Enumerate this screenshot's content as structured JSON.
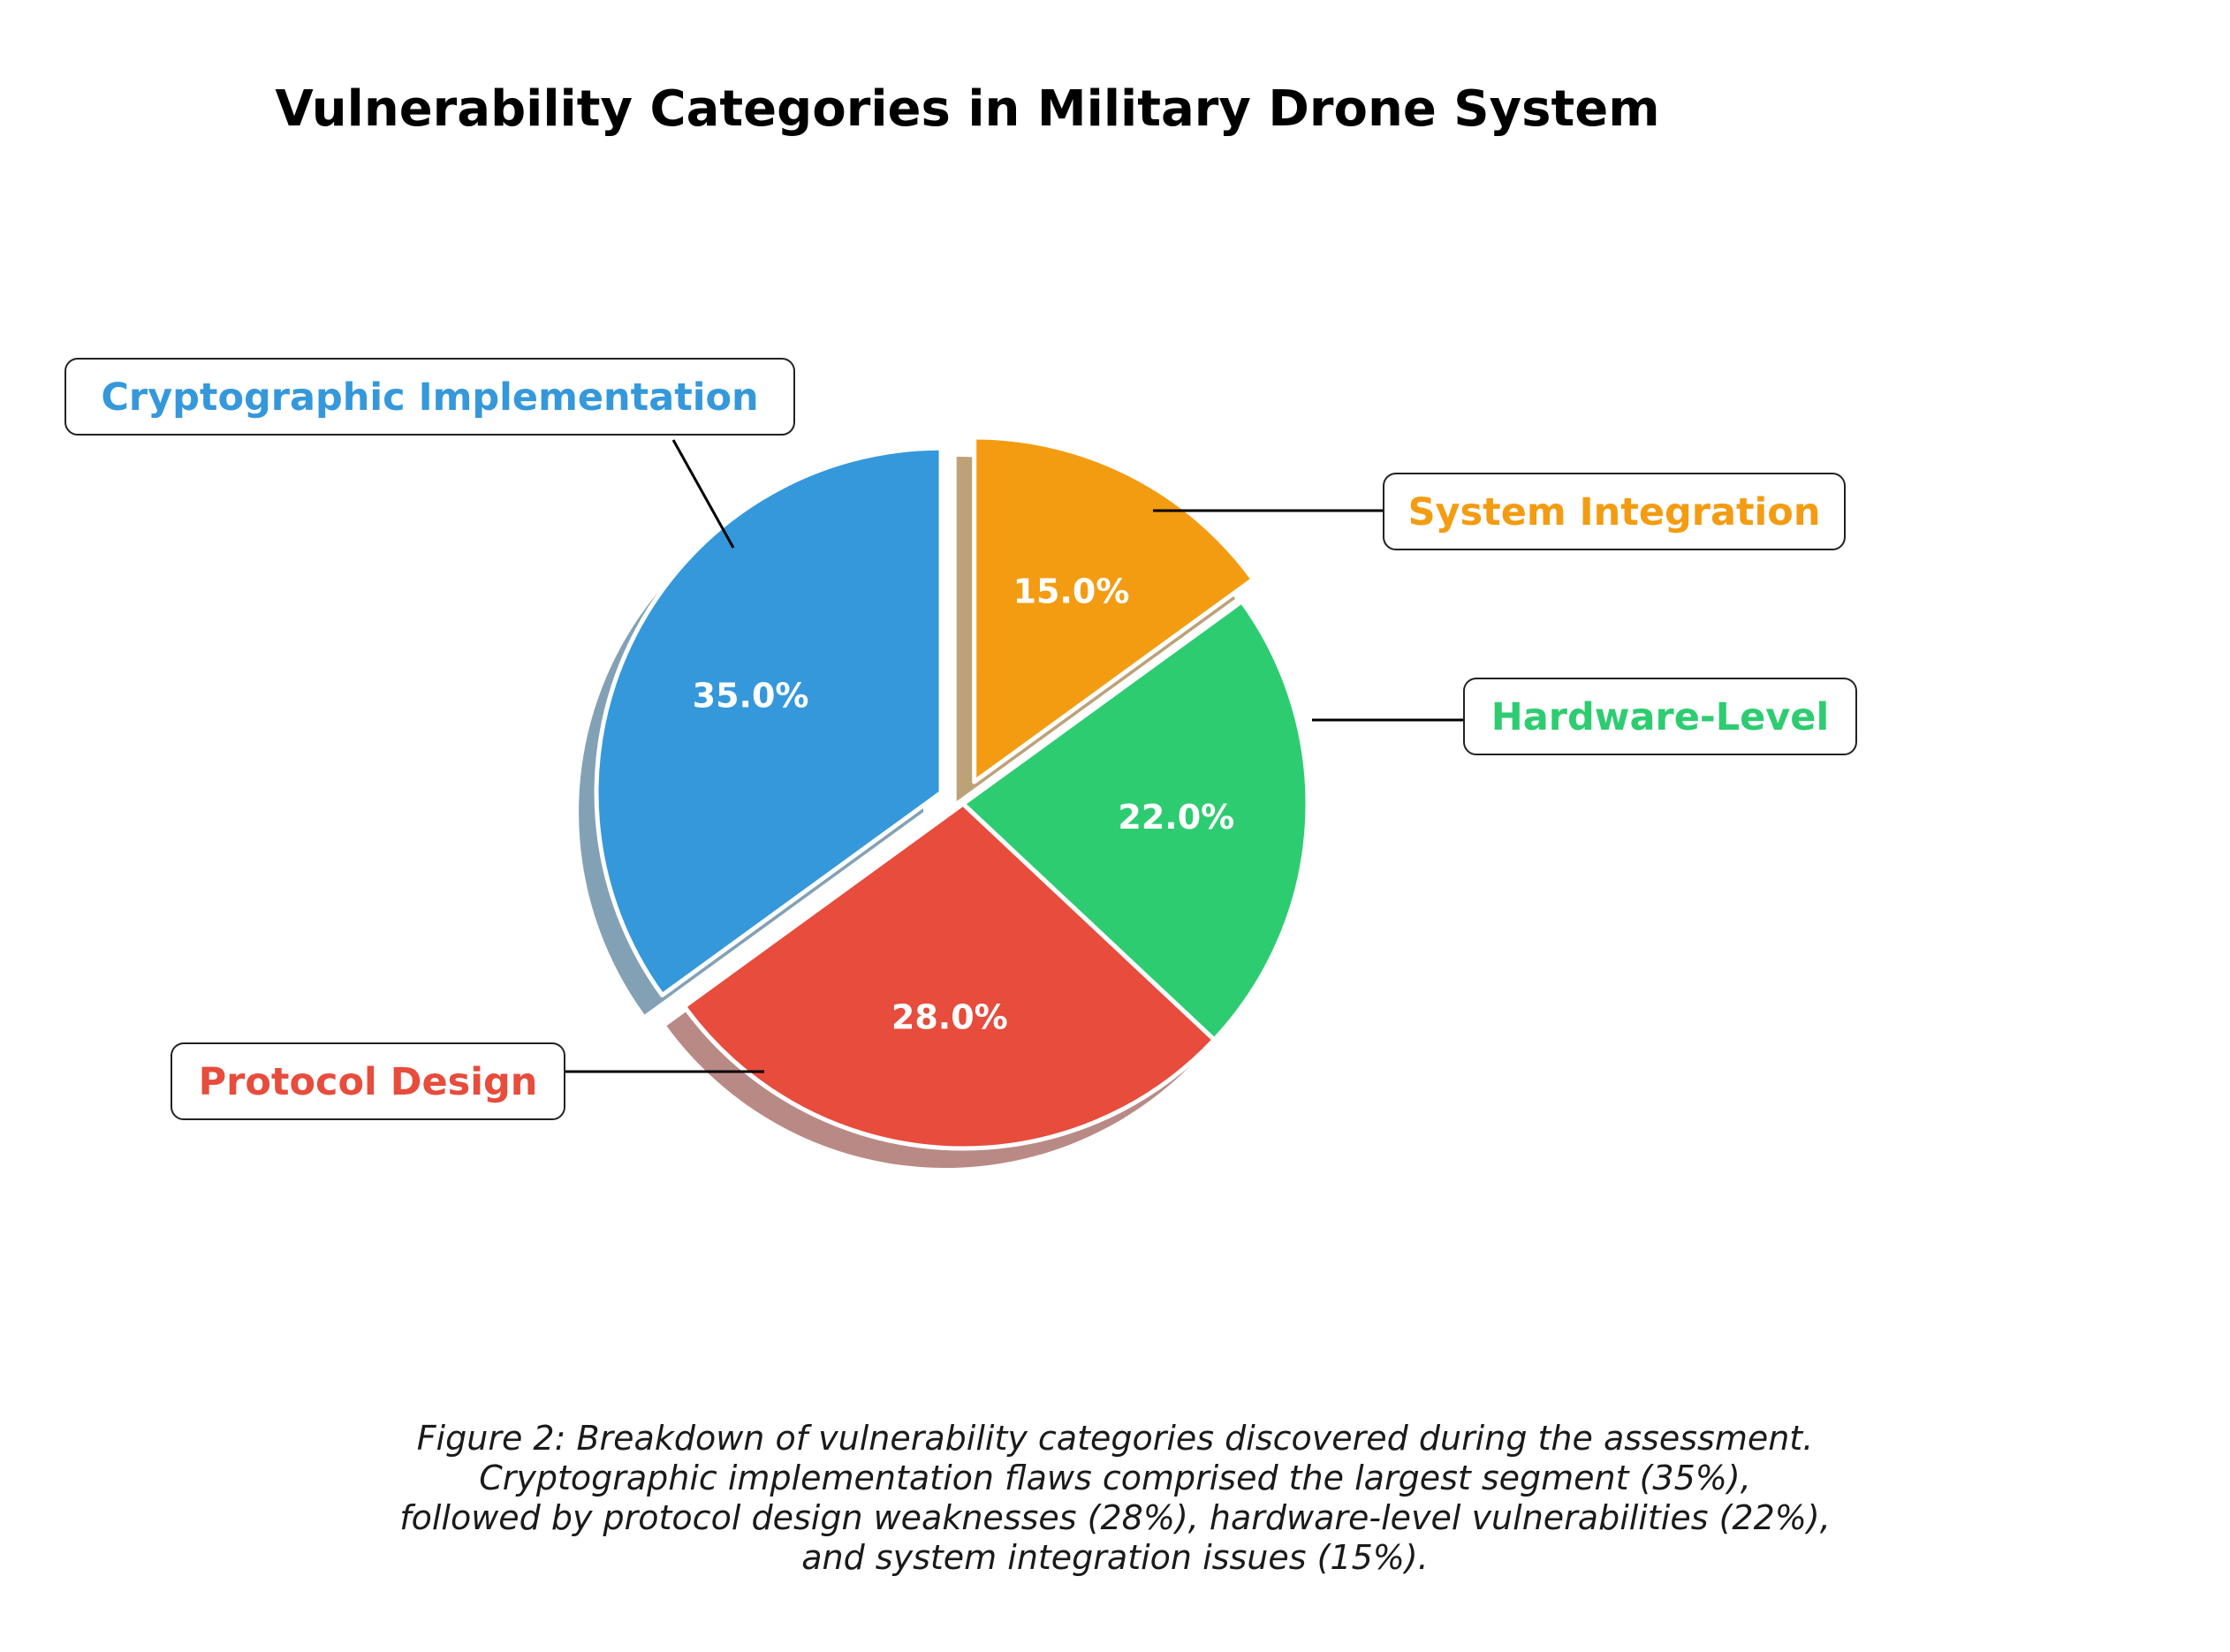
{
  "chart_data": {
    "type": "pie",
    "title": "Vulnerability Categories in Military Drone System",
    "categories": [
      "System Integration",
      "Hardware-Level",
      "Protocol Design",
      "Cryptographic Implementation"
    ],
    "values": [
      15.0,
      22.0,
      28.0,
      35.0
    ],
    "value_labels": [
      "15.0%",
      "22.0%",
      "28.0%",
      "35.0%"
    ],
    "colors": [
      "#f39c12",
      "#2ecc71",
      "#e74c3c",
      "#3498db"
    ],
    "exploded": [
      "Cryptographic Implementation",
      "System Integration"
    ],
    "shadow": true,
    "legend": "none"
  },
  "caption": {
    "lines": [
      "Figure 2: Breakdown of vulnerability categories discovered during the assessment.",
      "Cryptographic implementation flaws comprised the largest segment (35%),",
      "followed by protocol design weaknesses (28%), hardware-level vulnerabilities (22%),",
      "and system integration issues (15%)."
    ]
  }
}
